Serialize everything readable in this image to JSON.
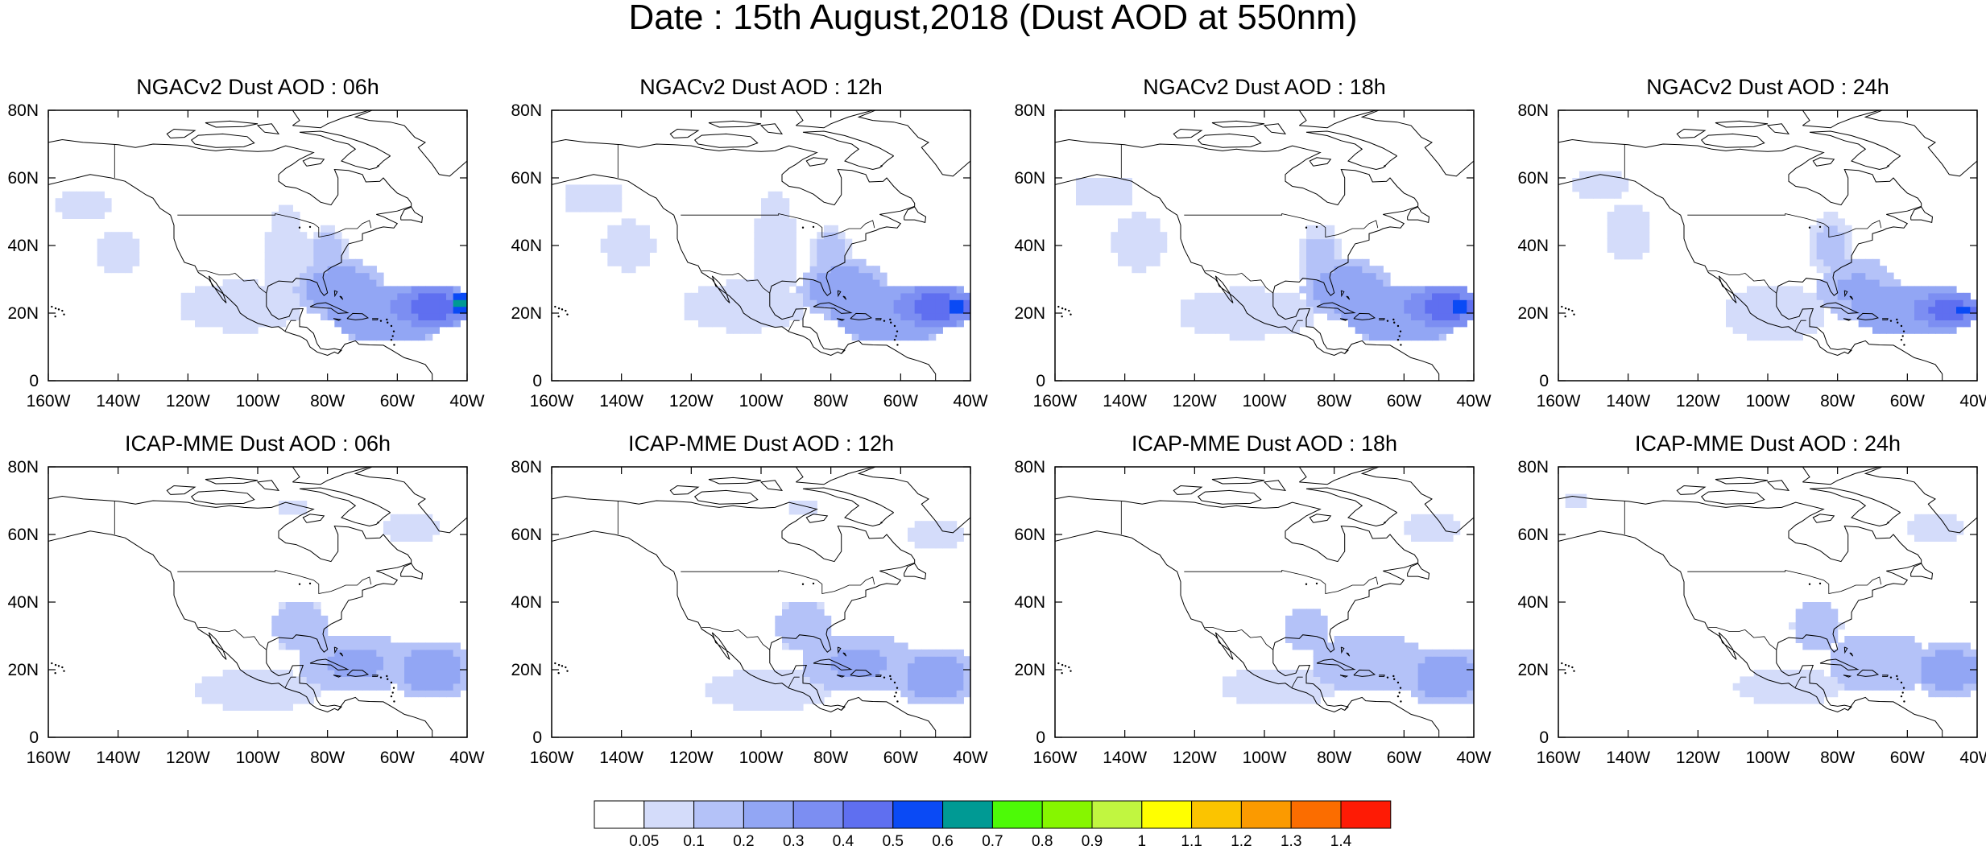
{
  "figure": {
    "title": "Date : 15th August,2018 (Dust AOD at 550nm)"
  },
  "chart_data": {
    "type": "heatmap",
    "axes": {
      "x_ticks": [
        "160W",
        "140W",
        "120W",
        "100W",
        "80W",
        "60W",
        "40W"
      ],
      "y_ticks": [
        "0",
        "20N",
        "40N",
        "60N",
        "80N"
      ],
      "xlim": [
        -160,
        -40
      ],
      "ylim": [
        0,
        80
      ]
    },
    "panels": [
      {
        "title": "NGACv2 Dust AOD : 06h",
        "model": "NGACv2",
        "lead": "06h",
        "blobs": [
          {
            "lon": -150,
            "lat": 52,
            "rlon": 12,
            "rlat": 7,
            "aod": 0.06
          },
          {
            "lon": -140,
            "lat": 38,
            "rlon": 10,
            "rlat": 10,
            "aod": 0.06
          },
          {
            "lon": -105,
            "lat": 22,
            "rlon": 20,
            "rlat": 8,
            "aod": 0.07
          },
          {
            "lon": -92,
            "lat": 35,
            "rlon": 6,
            "rlat": 18,
            "aod": 0.1
          },
          {
            "lon": -80,
            "lat": 38,
            "rlon": 6,
            "rlat": 8,
            "aod": 0.12
          },
          {
            "lon": -76,
            "lat": 27,
            "rlon": 13,
            "rlat": 9,
            "aod": 0.25
          },
          {
            "lon": -62,
            "lat": 20,
            "rlon": 18,
            "rlat": 9,
            "aod": 0.3
          },
          {
            "lon": -50,
            "lat": 22,
            "rlon": 13,
            "rlat": 6,
            "aod": 0.45
          },
          {
            "lon": -42,
            "lat": 23,
            "rlon": 4,
            "rlat": 3,
            "aod": 0.62
          }
        ]
      },
      {
        "title": "NGACv2 Dust AOD : 12h",
        "model": "NGACv2",
        "lead": "12h",
        "blobs": [
          {
            "lon": -148,
            "lat": 54,
            "rlon": 13,
            "rlat": 7,
            "aod": 0.06
          },
          {
            "lon": -138,
            "lat": 40,
            "rlon": 11,
            "rlat": 11,
            "aod": 0.06
          },
          {
            "lon": -105,
            "lat": 22,
            "rlon": 20,
            "rlat": 8,
            "aod": 0.07
          },
          {
            "lon": -96,
            "lat": 38,
            "rlon": 6,
            "rlat": 18,
            "aod": 0.1
          },
          {
            "lon": -80,
            "lat": 38,
            "rlon": 6,
            "rlat": 8,
            "aod": 0.12
          },
          {
            "lon": -76,
            "lat": 27,
            "rlon": 13,
            "rlat": 9,
            "aod": 0.25
          },
          {
            "lon": -62,
            "lat": 20,
            "rlon": 18,
            "rlat": 9,
            "aod": 0.3
          },
          {
            "lon": -50,
            "lat": 22,
            "rlon": 13,
            "rlat": 6,
            "aod": 0.45
          },
          {
            "lon": -44,
            "lat": 22,
            "rlon": 4,
            "rlat": 3,
            "aod": 0.62
          }
        ]
      },
      {
        "title": "NGACv2 Dust AOD : 18h",
        "model": "NGACv2",
        "lead": "18h",
        "blobs": [
          {
            "lon": -146,
            "lat": 56,
            "rlon": 13,
            "rlat": 7,
            "aod": 0.06
          },
          {
            "lon": -136,
            "lat": 41,
            "rlon": 11,
            "rlat": 12,
            "aod": 0.06
          },
          {
            "lon": -105,
            "lat": 20,
            "rlon": 22,
            "rlat": 8,
            "aod": 0.07
          },
          {
            "lon": -84,
            "lat": 36,
            "rlon": 7,
            "rlat": 10,
            "aod": 0.12
          },
          {
            "lon": -76,
            "lat": 27,
            "rlon": 13,
            "rlat": 9,
            "aod": 0.25
          },
          {
            "lon": -60,
            "lat": 20,
            "rlon": 18,
            "rlat": 9,
            "aod": 0.3
          },
          {
            "lon": -48,
            "lat": 22,
            "rlon": 12,
            "rlat": 6,
            "aod": 0.45
          },
          {
            "lon": -44,
            "lat": 22,
            "rlon": 4,
            "rlat": 3,
            "aod": 0.62
          }
        ]
      },
      {
        "title": "NGACv2 Dust AOD : 24h",
        "model": "NGACv2",
        "lead": "24h",
        "blobs": [
          {
            "lon": -148,
            "lat": 58,
            "rlon": 12,
            "rlat": 7,
            "aod": 0.06
          },
          {
            "lon": -140,
            "lat": 44,
            "rlon": 10,
            "rlat": 12,
            "aod": 0.06
          },
          {
            "lon": -98,
            "lat": 20,
            "rlon": 16,
            "rlat": 9,
            "aod": 0.07
          },
          {
            "lon": -82,
            "lat": 40,
            "rlon": 6,
            "rlat": 10,
            "aod": 0.12
          },
          {
            "lon": -74,
            "lat": 27,
            "rlon": 12,
            "rlat": 9,
            "aod": 0.22
          },
          {
            "lon": -58,
            "lat": 21,
            "rlon": 18,
            "rlat": 8,
            "aod": 0.3
          },
          {
            "lon": -48,
            "lat": 21,
            "rlon": 11,
            "rlat": 5,
            "aod": 0.45
          },
          {
            "lon": -44,
            "lat": 21,
            "rlon": 3,
            "rlat": 2,
            "aod": 0.62
          }
        ]
      },
      {
        "title": "ICAP-MME Dust AOD : 06h",
        "model": "ICAP-MME",
        "lead": "06h",
        "blobs": [
          {
            "lon": -100,
            "lat": 14,
            "rlon": 18,
            "rlat": 6,
            "aod": 0.08
          },
          {
            "lon": -88,
            "lat": 33,
            "rlon": 8,
            "rlat": 8,
            "aod": 0.15
          },
          {
            "lon": -72,
            "lat": 22,
            "rlon": 16,
            "rlat": 9,
            "aod": 0.22
          },
          {
            "lon": -50,
            "lat": 20,
            "rlon": 12,
            "rlat": 9,
            "aod": 0.25
          },
          {
            "lon": -56,
            "lat": 62,
            "rlon": 10,
            "rlat": 4,
            "aod": 0.07
          },
          {
            "lon": -90,
            "lat": 68,
            "rlon": 4,
            "rlat": 3,
            "aod": 0.1
          }
        ]
      },
      {
        "title": "ICAP-MME Dust AOD : 12h",
        "model": "ICAP-MME",
        "lead": "12h",
        "blobs": [
          {
            "lon": -98,
            "lat": 14,
            "rlon": 18,
            "rlat": 6,
            "aod": 0.08
          },
          {
            "lon": -88,
            "lat": 33,
            "rlon": 8,
            "rlat": 8,
            "aod": 0.15
          },
          {
            "lon": -72,
            "lat": 22,
            "rlon": 16,
            "rlat": 9,
            "aod": 0.22
          },
          {
            "lon": -50,
            "lat": 18,
            "rlon": 12,
            "rlat": 9,
            "aod": 0.25
          },
          {
            "lon": -50,
            "lat": 60,
            "rlon": 10,
            "rlat": 4,
            "aod": 0.07
          },
          {
            "lon": -88,
            "lat": 68,
            "rlon": 4,
            "rlat": 3,
            "aod": 0.1
          }
        ]
      },
      {
        "title": "ICAP-MME Dust AOD : 18h",
        "model": "ICAP-MME",
        "lead": "18h",
        "blobs": [
          {
            "lon": -96,
            "lat": 15,
            "rlon": 16,
            "rlat": 6,
            "aod": 0.08
          },
          {
            "lon": -88,
            "lat": 32,
            "rlon": 7,
            "rlat": 7,
            "aod": 0.15
          },
          {
            "lon": -70,
            "lat": 22,
            "rlon": 16,
            "rlat": 9,
            "aod": 0.2
          },
          {
            "lon": -48,
            "lat": 18,
            "rlon": 12,
            "rlat": 9,
            "aod": 0.25
          },
          {
            "lon": -52,
            "lat": 62,
            "rlon": 10,
            "rlat": 4,
            "aod": 0.07
          }
        ]
      },
      {
        "title": "ICAP-MME Dust AOD : 24h",
        "model": "ICAP-MME",
        "lead": "24h",
        "blobs": [
          {
            "lon": -94,
            "lat": 15,
            "rlon": 15,
            "rlat": 5,
            "aod": 0.08
          },
          {
            "lon": -86,
            "lat": 33,
            "rlon": 7,
            "rlat": 7,
            "aod": 0.15
          },
          {
            "lon": -68,
            "lat": 22,
            "rlon": 15,
            "rlat": 9,
            "aod": 0.2
          },
          {
            "lon": -48,
            "lat": 20,
            "rlon": 11,
            "rlat": 8,
            "aod": 0.25
          },
          {
            "lon": -155,
            "lat": 70,
            "rlon": 6,
            "rlat": 2,
            "aod": 0.06
          },
          {
            "lon": -52,
            "lat": 62,
            "rlon": 10,
            "rlat": 4,
            "aod": 0.07
          }
        ]
      }
    ]
  },
  "colorbar": {
    "labels": [
      "0.05",
      "0.1",
      "0.2",
      "0.3",
      "0.4",
      "0.5",
      "0.6",
      "0.7",
      "0.8",
      "0.9",
      "1",
      "1.1",
      "1.2",
      "1.3",
      "1.4"
    ],
    "levels": [
      0.05,
      0.1,
      0.2,
      0.3,
      0.4,
      0.5,
      0.6,
      0.7,
      0.8,
      0.9,
      1,
      1.1,
      1.2,
      1.3,
      1.4
    ],
    "colors": [
      "#ffffff",
      "#d4dcfa",
      "#b4c2f8",
      "#92a6f4",
      "#7c8ef2",
      "#5f6ff0",
      "#0a4af5",
      "#009a94",
      "#4dfa07",
      "#86f600",
      "#c1f640",
      "#ffff00",
      "#fbc400",
      "#fb9a00",
      "#fb6d00",
      "#fe1b05"
    ]
  },
  "map": {
    "coast_color": "#000000",
    "border_color": "#000000"
  }
}
